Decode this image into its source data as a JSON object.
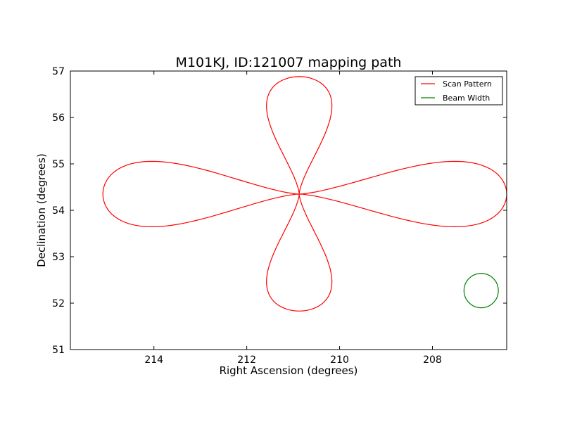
{
  "chart_data": {
    "type": "line",
    "title": "M101KJ, ID:121007 mapping path",
    "xlabel": "Right Ascension (degrees)",
    "ylabel": "Declination (degrees)",
    "xlim": [
      215.8,
      206.4
    ],
    "ylim": [
      51,
      57
    ],
    "x_ticks": [
      214,
      212,
      210,
      208
    ],
    "y_ticks": [
      51,
      52,
      53,
      54,
      55,
      56,
      57
    ],
    "x_tick_labels": [
      "214",
      "212",
      "210",
      "208"
    ],
    "y_tick_labels": [
      "51",
      "52",
      "53",
      "54",
      "55",
      "56",
      "57"
    ],
    "grid": false,
    "legend_position": "top-right",
    "series": [
      {
        "name": "Scan Pattern",
        "color": "#ff0000",
        "center": [
          210.87,
          54.35
        ],
        "horizontal_extent": [
          215.1,
          206.4
        ],
        "vertical_extent": [
          51.83,
          56.88
        ],
        "petal_half_width_deg": 0.7
      },
      {
        "name": "Beam Width",
        "color": "#008000",
        "center": [
          206.95,
          52.27
        ],
        "radius_deg": 0.37
      }
    ]
  }
}
